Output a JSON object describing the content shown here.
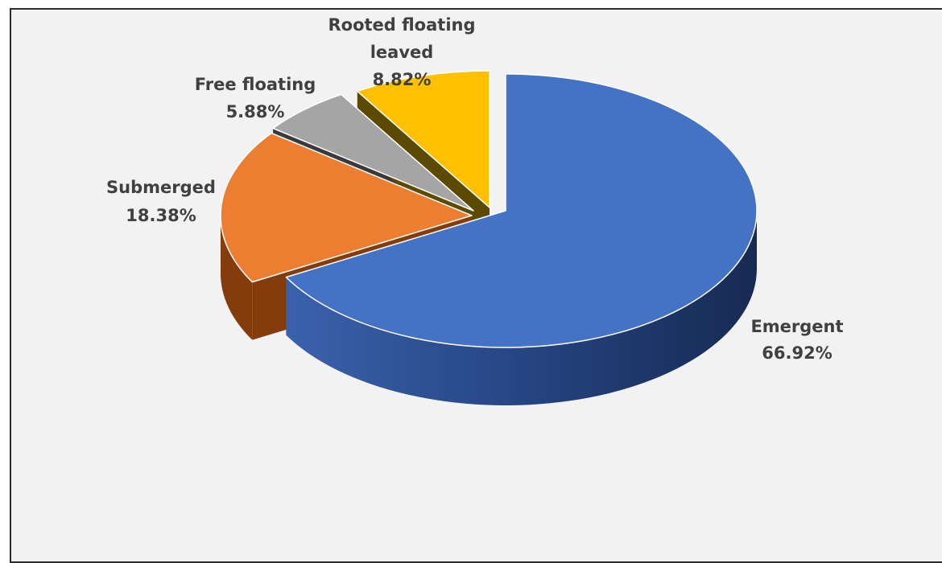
{
  "chart_data": {
    "type": "pie",
    "style": "3d-exploded",
    "start_angle_deg": 0,
    "slices": [
      {
        "label": "Emergent",
        "value": 66.92,
        "display": "66.92%",
        "color": "#4472c4",
        "side_color": "#1f3864",
        "exploded": false
      },
      {
        "label": "Submerged",
        "value": 18.38,
        "display": "18.38%",
        "color": "#ed7d31",
        "side_color": "#843c0c",
        "exploded": true
      },
      {
        "label": "Free floating",
        "value": 5.88,
        "display": "5.88%",
        "color": "#a5a5a5",
        "side_color": "#3a3a3a",
        "exploded": true
      },
      {
        "label": "Rooted floating leaved",
        "value": 8.82,
        "display": "8.82%",
        "color": "#ffc000",
        "side_color": "#5c4a00",
        "exploded": true
      }
    ],
    "background": "#f2f2f2",
    "legend": "none"
  }
}
